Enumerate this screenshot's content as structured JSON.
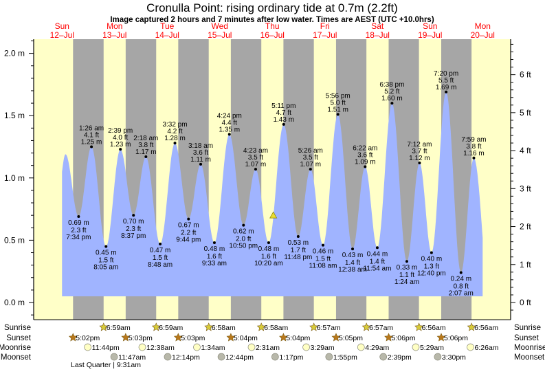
{
  "header": {
    "title": "Cronulla Point: rising  ordinary tide at 0.7m (2.2ft)",
    "subtitle": "Image captured 2 hours and 7 minutes after low water. Times are AEST (UTC +10.0hrs)"
  },
  "colors": {
    "day": "#ffffc8",
    "night": "#a6a6a6",
    "water": "#a0b4ff",
    "day_label": "#ff0000",
    "sunrise": "#d8cc3a",
    "sunset": "#b8781c",
    "moonrise": "#ffffc4",
    "moonset": "#b8b8aa",
    "current_marker": "#e8dc30"
  },
  "chart_data": {
    "type": "area",
    "title": "Cronulla Point: rising  ordinary tide at 0.7m (2.2ft)",
    "days": [
      {
        "dow": "Sun",
        "date": "12–Jul"
      },
      {
        "dow": "Mon",
        "date": "13–Jul"
      },
      {
        "dow": "Tue",
        "date": "14–Jul"
      },
      {
        "dow": "Wed",
        "date": "15–Jul"
      },
      {
        "dow": "Thu",
        "date": "16–Jul"
      },
      {
        "dow": "Fri",
        "date": "17–Jul"
      },
      {
        "dow": "Sat",
        "date": "18–Jul"
      },
      {
        "dow": "Sun",
        "date": "19–Jul"
      },
      {
        "dow": "Mon",
        "date": "20–Jul"
      }
    ],
    "y_left": {
      "unit": "m",
      "ylim": [
        0,
        2.0
      ],
      "ticks": [
        "0.0 m",
        "0.5 m",
        "1.0 m",
        "1.5 m",
        "2.0 m"
      ]
    },
    "y_right": {
      "unit": "ft",
      "ticks": [
        "0 ft",
        "1 ft",
        "2 ft",
        "3 ft",
        "4 ft",
        "5 ft",
        "6 ft"
      ]
    },
    "curve_start": {
      "day": 0,
      "time": "12:00pm",
      "m": 1.05
    },
    "curve_end": {
      "day": 8,
      "time": "12:00pm",
      "m": 0.52
    },
    "unlabeled_extremes": [
      {
        "day": 0,
        "time": "1:35pm",
        "m": 1.19,
        "type": "high"
      }
    ],
    "extremes": [
      {
        "day": 0,
        "type": "low",
        "time": "7:34 pm",
        "m": "0.69 m",
        "ft": "2.3 ft"
      },
      {
        "day": 1,
        "type": "high",
        "time": "1:26 am",
        "m": "1.25 m",
        "ft": "4.1 ft"
      },
      {
        "day": 1,
        "type": "low",
        "time": "8:05 am",
        "m": "0.45 m",
        "ft": "1.5 ft"
      },
      {
        "day": 1,
        "type": "high",
        "time": "2:39 pm",
        "m": "1.23 m",
        "ft": "4.0 ft"
      },
      {
        "day": 1,
        "type": "low",
        "time": "8:37 pm",
        "m": "0.70 m",
        "ft": "2.3 ft"
      },
      {
        "day": 2,
        "type": "high",
        "time": "2:18 am",
        "m": "1.17 m",
        "ft": "3.8 ft"
      },
      {
        "day": 2,
        "type": "low",
        "time": "8:48 am",
        "m": "0.47 m",
        "ft": "1.5 ft"
      },
      {
        "day": 2,
        "type": "high",
        "time": "3:32 pm",
        "m": "1.28 m",
        "ft": "4.2 ft"
      },
      {
        "day": 2,
        "type": "low",
        "time": "9:44 pm",
        "m": "0.67 m",
        "ft": "2.2 ft"
      },
      {
        "day": 3,
        "type": "high",
        "time": "3:18 am",
        "m": "1.11 m",
        "ft": "3.6 ft"
      },
      {
        "day": 3,
        "type": "low",
        "time": "9:33 am",
        "m": "0.48 m",
        "ft": "1.6 ft"
      },
      {
        "day": 3,
        "type": "high",
        "time": "4:24 pm",
        "m": "1.35 m",
        "ft": "4.4 ft"
      },
      {
        "day": 3,
        "type": "low",
        "time": "10:50 pm",
        "m": "0.62 m",
        "ft": "2.0 ft"
      },
      {
        "day": 4,
        "type": "high",
        "time": "4:23 am",
        "m": "1.07 m",
        "ft": "3.5 ft"
      },
      {
        "day": 4,
        "type": "low",
        "time": "10:20 am",
        "m": "0.48 m",
        "ft": "1.6 ft"
      },
      {
        "day": 4,
        "type": "high",
        "time": "5:11 pm",
        "m": "1.43 m",
        "ft": "4.7 ft"
      },
      {
        "day": 4,
        "type": "low",
        "time": "11:48 pm",
        "m": "0.53 m",
        "ft": "1.7 ft"
      },
      {
        "day": 5,
        "type": "high",
        "time": "5:26 am",
        "m": "1.07 m",
        "ft": "3.5 ft"
      },
      {
        "day": 5,
        "type": "low",
        "time": "11:08 am",
        "m": "0.46 m",
        "ft": "1.5 ft"
      },
      {
        "day": 5,
        "type": "high",
        "time": "5:56 pm",
        "m": "1.51 m",
        "ft": "5.0 ft"
      },
      {
        "day": 6,
        "type": "low",
        "time": "12:38 am",
        "m": "0.43 m",
        "ft": "1.4 ft"
      },
      {
        "day": 6,
        "type": "high",
        "time": "6:22 am",
        "m": "1.09 m",
        "ft": "3.6 ft"
      },
      {
        "day": 6,
        "type": "low",
        "time": "11:54 am",
        "m": "0.44 m",
        "ft": "1.4 ft"
      },
      {
        "day": 6,
        "type": "high",
        "time": "6:38 pm",
        "m": "1.60 m",
        "ft": "5.2 ft"
      },
      {
        "day": 7,
        "type": "low",
        "time": "1:24 am",
        "m": "0.33 m",
        "ft": "1.1 ft"
      },
      {
        "day": 7,
        "type": "high",
        "time": "7:12 am",
        "m": "1.12 m",
        "ft": "3.7 ft"
      },
      {
        "day": 7,
        "type": "low",
        "time": "12:40 pm",
        "m": "0.40 m",
        "ft": "1.3 ft"
      },
      {
        "day": 7,
        "type": "high",
        "time": "7:20 pm",
        "m": "1.69 m",
        "ft": "5.5 ft"
      },
      {
        "day": 8,
        "type": "low",
        "time": "2:07 am",
        "m": "0.24 m",
        "ft": "0.8 ft"
      },
      {
        "day": 8,
        "type": "high",
        "time": "7:59 am",
        "m": "1.16 m",
        "ft": "3.8 ft"
      }
    ],
    "current": {
      "day": 4,
      "time": "12:27pm",
      "m": 0.7,
      "ft": 2.2,
      "state": "rising"
    }
  },
  "rows": {
    "sunrise": {
      "label": "Sunrise",
      "events": [
        {
          "day": 1,
          "time": "6:59am"
        },
        {
          "day": 2,
          "time": "6:59am"
        },
        {
          "day": 3,
          "time": "6:58am"
        },
        {
          "day": 4,
          "time": "6:58am"
        },
        {
          "day": 5,
          "time": "6:57am"
        },
        {
          "day": 6,
          "time": "6:57am"
        },
        {
          "day": 7,
          "time": "6:56am"
        },
        {
          "day": 8,
          "time": "6:56am"
        }
      ]
    },
    "sunset": {
      "label": "Sunset",
      "events": [
        {
          "day": 0,
          "time": "5:02pm"
        },
        {
          "day": 1,
          "time": "5:03pm"
        },
        {
          "day": 2,
          "time": "5:03pm"
        },
        {
          "day": 3,
          "time": "5:04pm"
        },
        {
          "day": 4,
          "time": "5:04pm"
        },
        {
          "day": 5,
          "time": "5:05pm"
        },
        {
          "day": 6,
          "time": "5:06pm"
        },
        {
          "day": 7,
          "time": "5:06pm"
        }
      ]
    },
    "moonrise": {
      "label": "Moonrise",
      "events": [
        {
          "day": 0,
          "time": "11:44pm"
        },
        {
          "day": 2,
          "time": "12:38am"
        },
        {
          "day": 3,
          "time": "1:34am"
        },
        {
          "day": 4,
          "time": "2:31am"
        },
        {
          "day": 5,
          "time": "3:29am"
        },
        {
          "day": 6,
          "time": "4:29am"
        },
        {
          "day": 7,
          "time": "5:29am"
        },
        {
          "day": 8,
          "time": "6:26am"
        }
      ]
    },
    "moonset": {
      "label": "Moonset",
      "events": [
        {
          "day": 1,
          "time": "11:47am"
        },
        {
          "day": 2,
          "time": "12:14pm"
        },
        {
          "day": 3,
          "time": "12:44pm"
        },
        {
          "day": 4,
          "time": "1:17pm"
        },
        {
          "day": 5,
          "time": "1:55pm"
        },
        {
          "day": 6,
          "time": "2:39pm"
        },
        {
          "day": 7,
          "time": "3:30pm"
        }
      ]
    },
    "moon_phase": {
      "label": "Last Quarter | 9:31am"
    }
  }
}
